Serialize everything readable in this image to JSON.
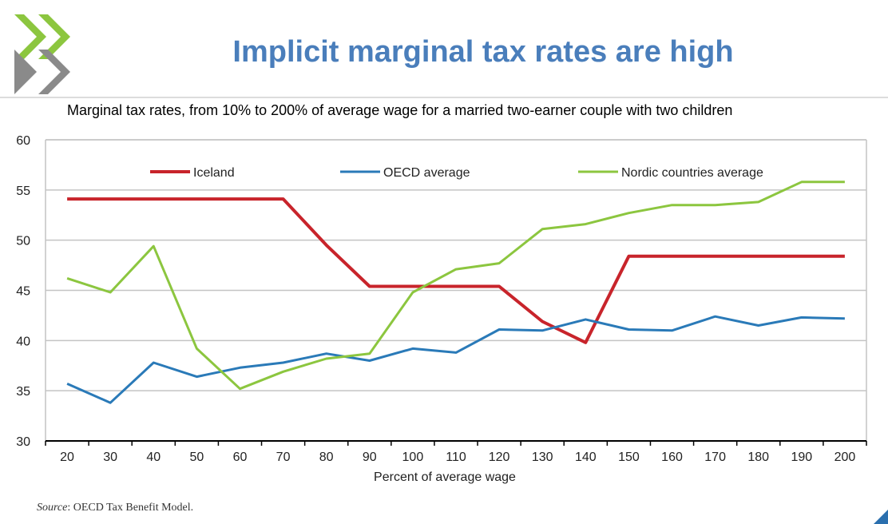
{
  "header": {
    "title": "Implicit marginal tax rates are high",
    "logo_icon": "oecd-chevron-logo-icon",
    "accent": "#4a7ebb"
  },
  "source": {
    "label": "Source",
    "text": ": OECD Tax Benefit Model."
  },
  "chart_data": {
    "type": "line",
    "title": "Marginal tax rates, from 10% to 200% of average wage for a married two-earner couple with two children",
    "xlabel": "Percent of average wage",
    "ylabel": "",
    "ylim": [
      30,
      60
    ],
    "yticks": [
      30,
      35,
      40,
      45,
      50,
      55,
      60
    ],
    "grid": true,
    "legend": "top",
    "x": [
      20,
      30,
      40,
      50,
      60,
      70,
      80,
      90,
      100,
      110,
      120,
      130,
      140,
      150,
      160,
      170,
      180,
      190,
      200
    ],
    "series": [
      {
        "name": "Iceland",
        "color": "#c8242b",
        "values": [
          54.1,
          54.1,
          54.1,
          54.1,
          54.1,
          54.1,
          49.5,
          45.4,
          45.4,
          45.4,
          45.4,
          41.9,
          39.8,
          48.4,
          48.4,
          48.4,
          48.4,
          48.4,
          48.4
        ]
      },
      {
        "name": "OECD average",
        "color": "#2a7ab8",
        "values": [
          35.7,
          33.8,
          37.8,
          36.4,
          37.3,
          37.8,
          38.7,
          38.0,
          39.2,
          38.8,
          41.1,
          41.0,
          42.1,
          41.1,
          41.0,
          42.4,
          41.5,
          42.3,
          42.2
        ]
      },
      {
        "name": "Nordic countries average",
        "color": "#8cc63f",
        "values": [
          46.2,
          44.8,
          49.4,
          39.2,
          35.2,
          36.9,
          38.2,
          38.7,
          44.8,
          47.1,
          47.7,
          51.1,
          51.6,
          52.7,
          53.5,
          53.5,
          53.8,
          55.8,
          55.8
        ]
      }
    ]
  }
}
